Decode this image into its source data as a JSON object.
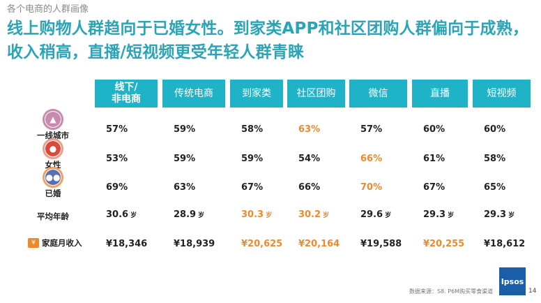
{
  "page": {
    "subtitle": "各个电商的人群画像",
    "headline": "线上购物人群趋向于已婚女性。到家类APP和社区团购人群偏向于成熟，收入稍高，直播/短视频更受年轻人群青睐",
    "footer": "数据来源：S8. P6M购买零食渠道",
    "page_number": "14",
    "logo_text": "Ipsos"
  },
  "colors": {
    "header_bg": "#1fb3c8",
    "headline": "#2aa4b6",
    "highlight": "#ee8a2b",
    "logo": "#1a5ea8"
  },
  "columns": [
    "线下/\n非电商",
    "传统电商",
    "到家类",
    "社区团购",
    "微信",
    "直播",
    "短视频"
  ],
  "rows": [
    {
      "label": "一线城市",
      "icon": "city-icon",
      "values": [
        "57%",
        "59%",
        "58%",
        "63%",
        "57%",
        "60%",
        "60%"
      ],
      "highlight": [
        false,
        false,
        false,
        true,
        false,
        false,
        false
      ]
    },
    {
      "label": "女性",
      "icon": "female-icon",
      "values": [
        "53%",
        "59%",
        "59%",
        "54%",
        "66%",
        "61%",
        "58%"
      ],
      "highlight": [
        false,
        false,
        false,
        false,
        true,
        false,
        false
      ]
    },
    {
      "label": "已婚",
      "icon": "couple-icon",
      "values": [
        "69%",
        "63%",
        "67%",
        "66%",
        "70%",
        "67%",
        "65%"
      ],
      "highlight": [
        false,
        false,
        false,
        false,
        true,
        false,
        false
      ]
    },
    {
      "label": "平均年龄",
      "icon": "",
      "unit": "岁",
      "values": [
        "30.6",
        "28.9",
        "30.3",
        "30.2",
        "29.6",
        "29.3",
        "29.3"
      ],
      "highlight": [
        false,
        false,
        true,
        true,
        false,
        false,
        false
      ]
    },
    {
      "label": "家庭月收入",
      "icon": "money-icon",
      "values": [
        "¥18,346",
        "¥18,939",
        "¥20,625",
        "¥20,164",
        "¥19,588",
        "¥20,255",
        "¥18,612"
      ],
      "highlight": [
        false,
        false,
        true,
        true,
        false,
        true,
        false
      ]
    }
  ]
}
